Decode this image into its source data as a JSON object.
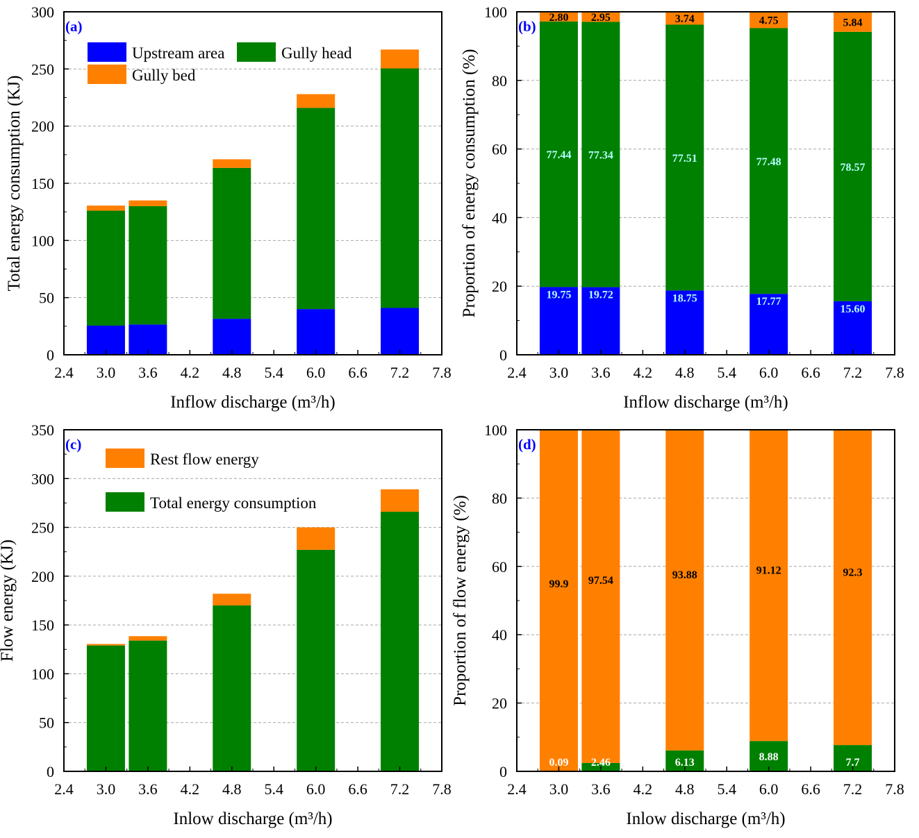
{
  "colors": {
    "upstream": "#0000ff",
    "gully_head": "#008000",
    "gully_bed": "#ff8000",
    "rest_flow": "#ff8000",
    "total_consumption": "#008000",
    "label_white": "#ffffff",
    "label_cyan": "#b4ffff",
    "label_black": "#000000",
    "panel_label": "#0000ff"
  },
  "chart_data": [
    {
      "id": "a",
      "type": "bar",
      "stacked": true,
      "panel_label": "(a)",
      "xlabel": "Inflow discharge (m³/h)",
      "ylabel": "Total energy consumption (KJ)",
      "xlim": [
        2.4,
        7.8
      ],
      "ylim": [
        0,
        300
      ],
      "xticks": [
        "2.4",
        "3.0",
        "3.6",
        "4.2",
        "4.8",
        "5.4",
        "6.0",
        "6.6",
        "7.2",
        "7.8"
      ],
      "yticks": [
        "0",
        "50",
        "100",
        "150",
        "200",
        "250",
        "300"
      ],
      "x": [
        3.0,
        3.6,
        4.8,
        6.0,
        7.2
      ],
      "grid": true,
      "legend_position": "top-left",
      "series": [
        {
          "name": "Upstream area",
          "color_key": "upstream",
          "values": [
            25.5,
            26.5,
            31.5,
            40,
            41
          ]
        },
        {
          "name": "Gully head",
          "color_key": "gully_head",
          "values": [
            100.5,
            103.5,
            132,
            176,
            209.5
          ]
        },
        {
          "name": "Gully bed",
          "color_key": "gully_bed",
          "values": [
            4.5,
            5,
            7.5,
            12,
            16.5
          ]
        }
      ]
    },
    {
      "id": "b",
      "type": "bar",
      "stacked": true,
      "panel_label": "(b)",
      "xlabel": "Inflow discharge (m³/h)",
      "ylabel": "Proportion of energy consumption (%)",
      "xlim": [
        2.4,
        7.8
      ],
      "ylim": [
        0,
        100
      ],
      "xticks": [
        "2.4",
        "3.0",
        "3.6",
        "4.2",
        "4.8",
        "5.4",
        "6.0",
        "6.6",
        "7.2",
        "7.8"
      ],
      "yticks": [
        "0",
        "20",
        "40",
        "60",
        "80",
        "100"
      ],
      "x": [
        3.0,
        3.6,
        4.8,
        6.0,
        7.2
      ],
      "grid": true,
      "series": [
        {
          "color_key": "upstream",
          "values": [
            19.75,
            19.72,
            18.75,
            17.77,
            15.6
          ],
          "labels": [
            "19.75",
            "19.72",
            "18.75",
            "17.77",
            "15.60"
          ],
          "label_color_key": "label_cyan"
        },
        {
          "color_key": "gully_head",
          "values": [
            77.44,
            77.34,
            77.51,
            77.48,
            78.57
          ],
          "labels": [
            "77.44",
            "77.34",
            "77.51",
            "77.48",
            "78.57"
          ],
          "label_color_key": "label_cyan"
        },
        {
          "color_key": "gully_bed",
          "values": [
            2.8,
            2.95,
            3.74,
            4.75,
            5.84
          ],
          "labels": [
            "2.80",
            "2.95",
            "3.74",
            "4.75",
            "5.84"
          ],
          "label_color_key": "label_black"
        }
      ]
    },
    {
      "id": "c",
      "type": "bar",
      "stacked": true,
      "panel_label": "(c)",
      "xlabel": "Inlow discharge (m³/h)",
      "ylabel": "Flow energy (KJ)",
      "xlim": [
        2.4,
        7.8
      ],
      "ylim": [
        0,
        350
      ],
      "xticks": [
        "2.4",
        "3.0",
        "3.6",
        "4.2",
        "4.8",
        "5.4",
        "6.0",
        "6.6",
        "7.2",
        "7.8"
      ],
      "yticks": [
        "0",
        "50",
        "100",
        "150",
        "200",
        "250",
        "300",
        "350"
      ],
      "x": [
        3.0,
        3.6,
        4.8,
        6.0,
        7.2
      ],
      "grid": true,
      "legend_position": "top-left",
      "series": [
        {
          "name": "Total energy consumption",
          "color_key": "total_consumption",
          "values": [
            129,
            134,
            170,
            227,
            266
          ]
        },
        {
          "name": "Rest flow energy",
          "color_key": "rest_flow",
          "values": [
            1.5,
            4.5,
            12,
            23,
            23
          ]
        }
      ]
    },
    {
      "id": "d",
      "type": "bar",
      "stacked": true,
      "panel_label": "(d)",
      "xlabel": "Inlow discharge (m³/h)",
      "ylabel": "Proportion of flow energy (%)",
      "xlim": [
        2.4,
        7.8
      ],
      "ylim": [
        0,
        100
      ],
      "xticks": [
        "2.4",
        "3.0",
        "3.6",
        "4.2",
        "4.8",
        "5.4",
        "6.0",
        "6.6",
        "7.2",
        "7.8"
      ],
      "yticks": [
        "0",
        "20",
        "40",
        "60",
        "80",
        "100"
      ],
      "x": [
        3.0,
        3.6,
        4.8,
        6.0,
        7.2
      ],
      "grid": true,
      "series": [
        {
          "color_key": "total_consumption",
          "values": [
            0.09,
            2.46,
            6.13,
            8.88,
            7.7
          ],
          "labels": [
            "0.09",
            "2.46",
            "6.13",
            "8.88",
            "7.7"
          ],
          "label_color_key": "label_white"
        },
        {
          "color_key": "rest_flow",
          "values": [
            99.9,
            97.54,
            93.88,
            91.12,
            92.3
          ],
          "labels": [
            "99.9",
            "97.54",
            "93.88",
            "91.12",
            "92.3"
          ],
          "label_color_key": "label_black"
        }
      ]
    }
  ]
}
